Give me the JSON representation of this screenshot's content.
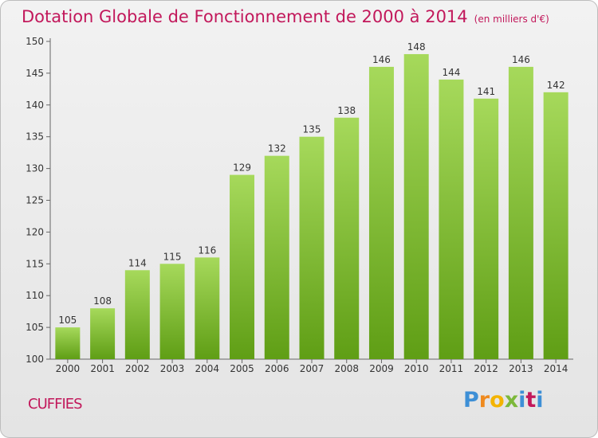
{
  "title": {
    "main": "Dotation Globale de Fonctionnement de 2000 à 2014",
    "unit": "(en milliers d'€)"
  },
  "place_name": "CUFFIES",
  "logo_text": "Proxiti",
  "colors": {
    "title": "#c2185b",
    "bar_top": "#a6d95b",
    "bar_bottom": "#5f9e15",
    "axis": "#666666",
    "grid_tick_text": "#333333"
  },
  "chart_data": {
    "type": "bar",
    "title": "Dotation Globale de Fonctionnement de 2000 à 2014",
    "subtitle": "(en milliers d'€)",
    "categories": [
      "2000",
      "2001",
      "2002",
      "2003",
      "2004",
      "2005",
      "2006",
      "2007",
      "2008",
      "2009",
      "2010",
      "2011",
      "2012",
      "2013",
      "2014"
    ],
    "values": [
      105,
      108,
      114,
      115,
      116,
      129,
      132,
      135,
      138,
      146,
      148,
      144,
      141,
      146,
      142
    ],
    "ylim": [
      100,
      150
    ],
    "yticks": [
      100,
      105,
      110,
      115,
      120,
      125,
      130,
      135,
      140,
      145,
      150
    ],
    "xlabel": "",
    "ylabel": "",
    "grid": false,
    "legend": "none"
  }
}
